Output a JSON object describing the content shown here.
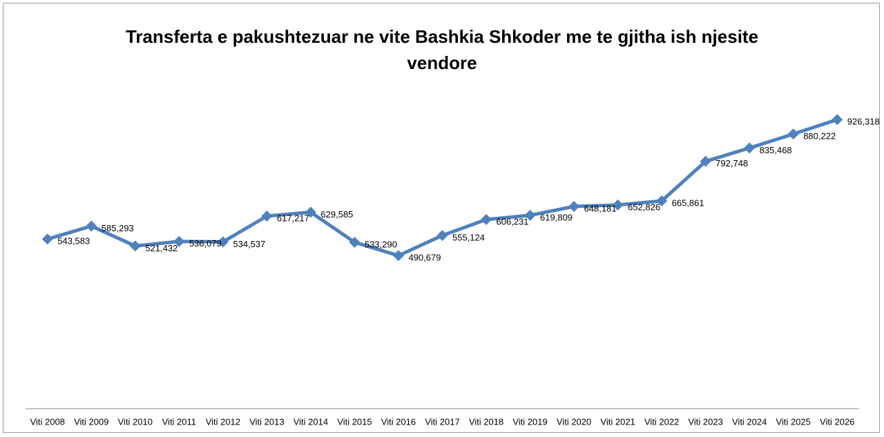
{
  "chart_data": {
    "type": "line",
    "title": "Transferta e pakushtezuar ne vite Bashkia Shkoder me te gjitha ish njesite vendore",
    "categories": [
      "Viti 2008",
      "Viti 2009",
      "Viti 2010",
      "Viti 2011",
      "Viti 2012",
      "Viti 2013",
      "Viti 2014",
      "Viti 2015",
      "Viti 2016",
      "Viti 2017",
      "Viti 2018",
      "Viti 2019",
      "Viti 2020",
      "Viti 2021",
      "Viti 2022",
      "Viti 2023",
      "Viti 2024",
      "Viti 2025",
      "Viti 2026"
    ],
    "series": [
      {
        "name": "Transferta",
        "color": "#4f81bd",
        "values": [
          543583,
          585293,
          521432,
          536079,
          534537,
          617217,
          629585,
          533290,
          490679,
          555124,
          606231,
          619809,
          648181,
          652826,
          665861,
          792748,
          835468,
          880222,
          926318
        ],
        "value_labels": [
          "543,583",
          "585,293",
          "521,432",
          "536,079",
          "534,537",
          "617,217",
          "629,585",
          "533,290",
          "490,679",
          "555,124",
          "606,231",
          "619,809",
          "648,181",
          "652,826",
          "665,861",
          "792,748",
          "835,468",
          "880,222",
          "926,318"
        ]
      }
    ],
    "ylim": [
      0,
      1000000
    ]
  }
}
